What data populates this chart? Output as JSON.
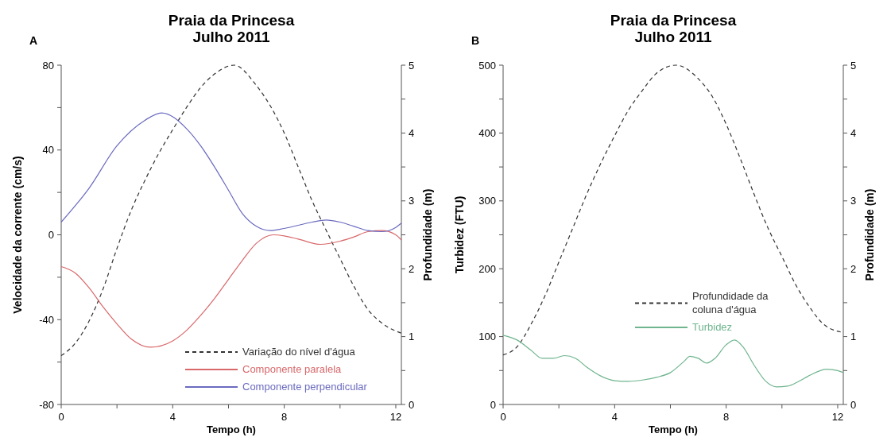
{
  "chart_data": [
    {
      "type": "line",
      "title": "Praia da Princesa",
      "subtitle": "Julho 2011",
      "annotations": [
        "A"
      ],
      "xlabel": "Tempo (h)",
      "ylabel": "Velocidade da corrente (cm/s)",
      "y2label": "Profundidade (m)",
      "xlim": [
        0,
        12.2
      ],
      "xticks": [
        0,
        {
          "value": 2,
          "label": null
        },
        4,
        {
          "value": 6,
          "label": null
        },
        8,
        {
          "value": 10,
          "label": null
        },
        12
      ],
      "ylim": [
        -80,
        80
      ],
      "yticks": [
        -80,
        {
          "value": -60,
          "label": null
        },
        -40,
        {
          "value": -20,
          "label": null
        },
        0,
        {
          "value": 20,
          "label": null
        },
        40,
        {
          "value": 60,
          "label": null
        },
        80
      ],
      "y2lim": [
        0,
        5
      ],
      "y2ticks": [
        0,
        {
          "value": 0.5,
          "label": null
        },
        1,
        {
          "value": 1.5,
          "label": null
        },
        2,
        {
          "value": 2.5,
          "label": null
        },
        3,
        {
          "value": 3.5,
          "label": null
        },
        4,
        {
          "value": 4.5,
          "label": null
        },
        5
      ],
      "legend": "bottom right",
      "grid": false,
      "series": [
        {
          "name": "Variação do nível d'água",
          "color": "#333333",
          "axis": "y2",
          "line_style": "dashed",
          "x": [
            0,
            0.5,
            1,
            1.5,
            2,
            2.5,
            3,
            3.5,
            4,
            4.5,
            5,
            5.5,
            6.2,
            7,
            7.5,
            8,
            8.5,
            9,
            9.5,
            10,
            10.5,
            11,
            11.5,
            12.2
          ],
          "values": [
            0.72,
            0.9,
            1.23,
            1.7,
            2.3,
            2.85,
            3.3,
            3.7,
            4.05,
            4.38,
            4.67,
            4.87,
            5.0,
            4.7,
            4.4,
            4.0,
            3.5,
            3.0,
            2.57,
            2.15,
            1.74,
            1.4,
            1.2,
            1.05
          ]
        },
        {
          "name": "Componente paralela",
          "color": "#d9686b",
          "line_style": "solid",
          "x": [
            0,
            0.5,
            1,
            1.5,
            2,
            2.5,
            3.2,
            4,
            4.5,
            5,
            5.5,
            6,
            6.5,
            7,
            7.6,
            8,
            8.5,
            9.3,
            10,
            10.5,
            11,
            11.5,
            12,
            12.2
          ],
          "values": [
            -15,
            -18,
            -25,
            -34,
            -42,
            -49,
            -53,
            -50,
            -45,
            -38,
            -30,
            -21,
            -12,
            -4,
            0,
            -0.5,
            -2,
            -4.5,
            -3,
            -1,
            1.5,
            2,
            0,
            -2.5
          ]
        },
        {
          "name": "Componente perpendicular",
          "color": "#6a6ac0",
          "line_style": "solid",
          "x": [
            0,
            1,
            2,
            3,
            3.6,
            4.5,
            5,
            5.5,
            6,
            6.5,
            7,
            7.5,
            8,
            9,
            9.5,
            10,
            10.5,
            11,
            11.5,
            12,
            12.2
          ],
          "values": [
            6,
            22,
            42,
            54,
            57.5,
            50,
            42,
            32,
            21,
            10,
            4,
            2,
            3,
            6,
            7,
            6,
            4,
            2,
            1.5,
            3.5,
            5.5
          ]
        }
      ]
    },
    {
      "type": "line",
      "title": "Praia da Princesa",
      "subtitle": "Julho 2011",
      "annotations": [
        "B"
      ],
      "xlabel": "Tempo (h)",
      "ylabel": "Turbidez (FTU)",
      "y2label": "Profundidade (m)",
      "xlim": [
        0,
        12.2
      ],
      "xticks": [
        0,
        {
          "value": 2,
          "label": null
        },
        4,
        {
          "value": 6,
          "label": null
        },
        8,
        {
          "value": 10,
          "label": null
        },
        12
      ],
      "ylim": [
        0,
        500
      ],
      "yticks": [
        0,
        {
          "value": 50,
          "label": null
        },
        100,
        {
          "value": 150,
          "label": null
        },
        200,
        {
          "value": 250,
          "label": null
        },
        300,
        {
          "value": 350,
          "label": null
        },
        400,
        {
          "value": 450,
          "label": null
        },
        500
      ],
      "y2lim": [
        0,
        5
      ],
      "y2ticks": [
        0,
        {
          "value": 0.5,
          "label": null
        },
        1,
        {
          "value": 1.5,
          "label": null
        },
        2,
        {
          "value": 2.5,
          "label": null
        },
        3,
        {
          "value": 3.5,
          "label": null
        },
        4,
        {
          "value": 4.5,
          "label": null
        },
        5
      ],
      "legend": "bottom",
      "grid": false,
      "series": [
        {
          "name": "Profundidade da coluna d'água",
          "color": "#333333",
          "axis": "y2",
          "line_style": "dashed",
          "x": [
            0,
            0.5,
            1,
            1.5,
            2,
            2.5,
            3,
            3.5,
            4,
            4.5,
            5,
            5.5,
            6.2,
            7,
            7.5,
            8,
            8.5,
            9,
            9.5,
            10,
            10.5,
            11,
            11.5,
            12.2
          ],
          "values": [
            0.73,
            0.85,
            1.18,
            1.6,
            2.1,
            2.6,
            3.1,
            3.55,
            3.96,
            4.34,
            4.63,
            4.88,
            5.0,
            4.8,
            4.54,
            4.13,
            3.63,
            3.1,
            2.6,
            2.18,
            1.76,
            1.43,
            1.18,
            1.06
          ]
        },
        {
          "name": "Turbidez",
          "color": "#6fb58f",
          "line_style": "solid",
          "x": [
            0,
            0.5,
            1,
            1.4,
            1.8,
            2.2,
            2.6,
            3,
            3.5,
            4,
            4.5,
            5,
            5.5,
            6,
            6.5,
            6.7,
            7,
            7.3,
            7.6,
            8,
            8.3,
            8.6,
            9,
            9.4,
            9.8,
            10.2,
            10.6,
            11,
            11.6,
            12,
            12.2
          ],
          "values": [
            102,
            95,
            80,
            68,
            68,
            72,
            68,
            55,
            42,
            35,
            34,
            36,
            40,
            47,
            64,
            71,
            68,
            61,
            68,
            88,
            95,
            85,
            58,
            35,
            26,
            27,
            34,
            43,
            52,
            50,
            47
          ]
        }
      ]
    }
  ]
}
